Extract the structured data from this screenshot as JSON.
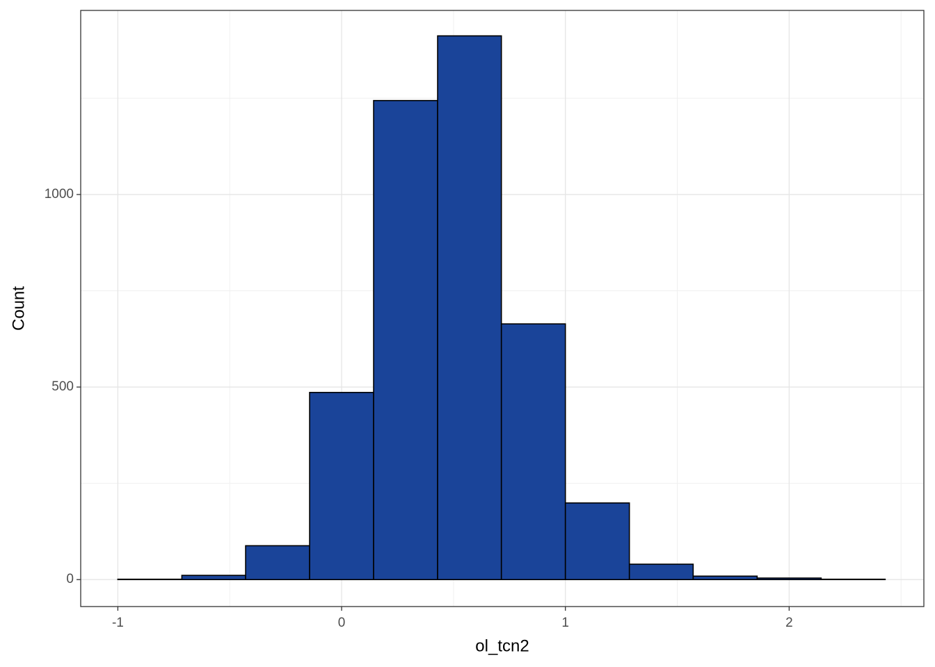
{
  "chart_data": {
    "type": "histogram",
    "x_label": "ol_tcn2",
    "y_label": "Count",
    "bins": [
      -1,
      -0.714,
      -0.429,
      -0.143,
      0.143,
      0.429,
      0.714,
      1.0,
      1.286,
      1.571,
      1.857,
      2.143,
      2.429
    ],
    "values": [
      1,
      11,
      88,
      486,
      1244,
      1412,
      664,
      199,
      40,
      9,
      4,
      1
    ],
    "color": "#1a4499",
    "edge_color": "#000000",
    "xlim": [
      -1.166,
      2.602
    ],
    "ylim": [
      -70,
      1478
    ],
    "xticks": [
      -1,
      0,
      1,
      2
    ],
    "yticks": [
      0,
      500,
      1000
    ],
    "xminor": [
      -0.5,
      0.5,
      1.5,
      2.5
    ],
    "yminor": [
      250,
      750,
      1250
    ],
    "grid": true
  }
}
